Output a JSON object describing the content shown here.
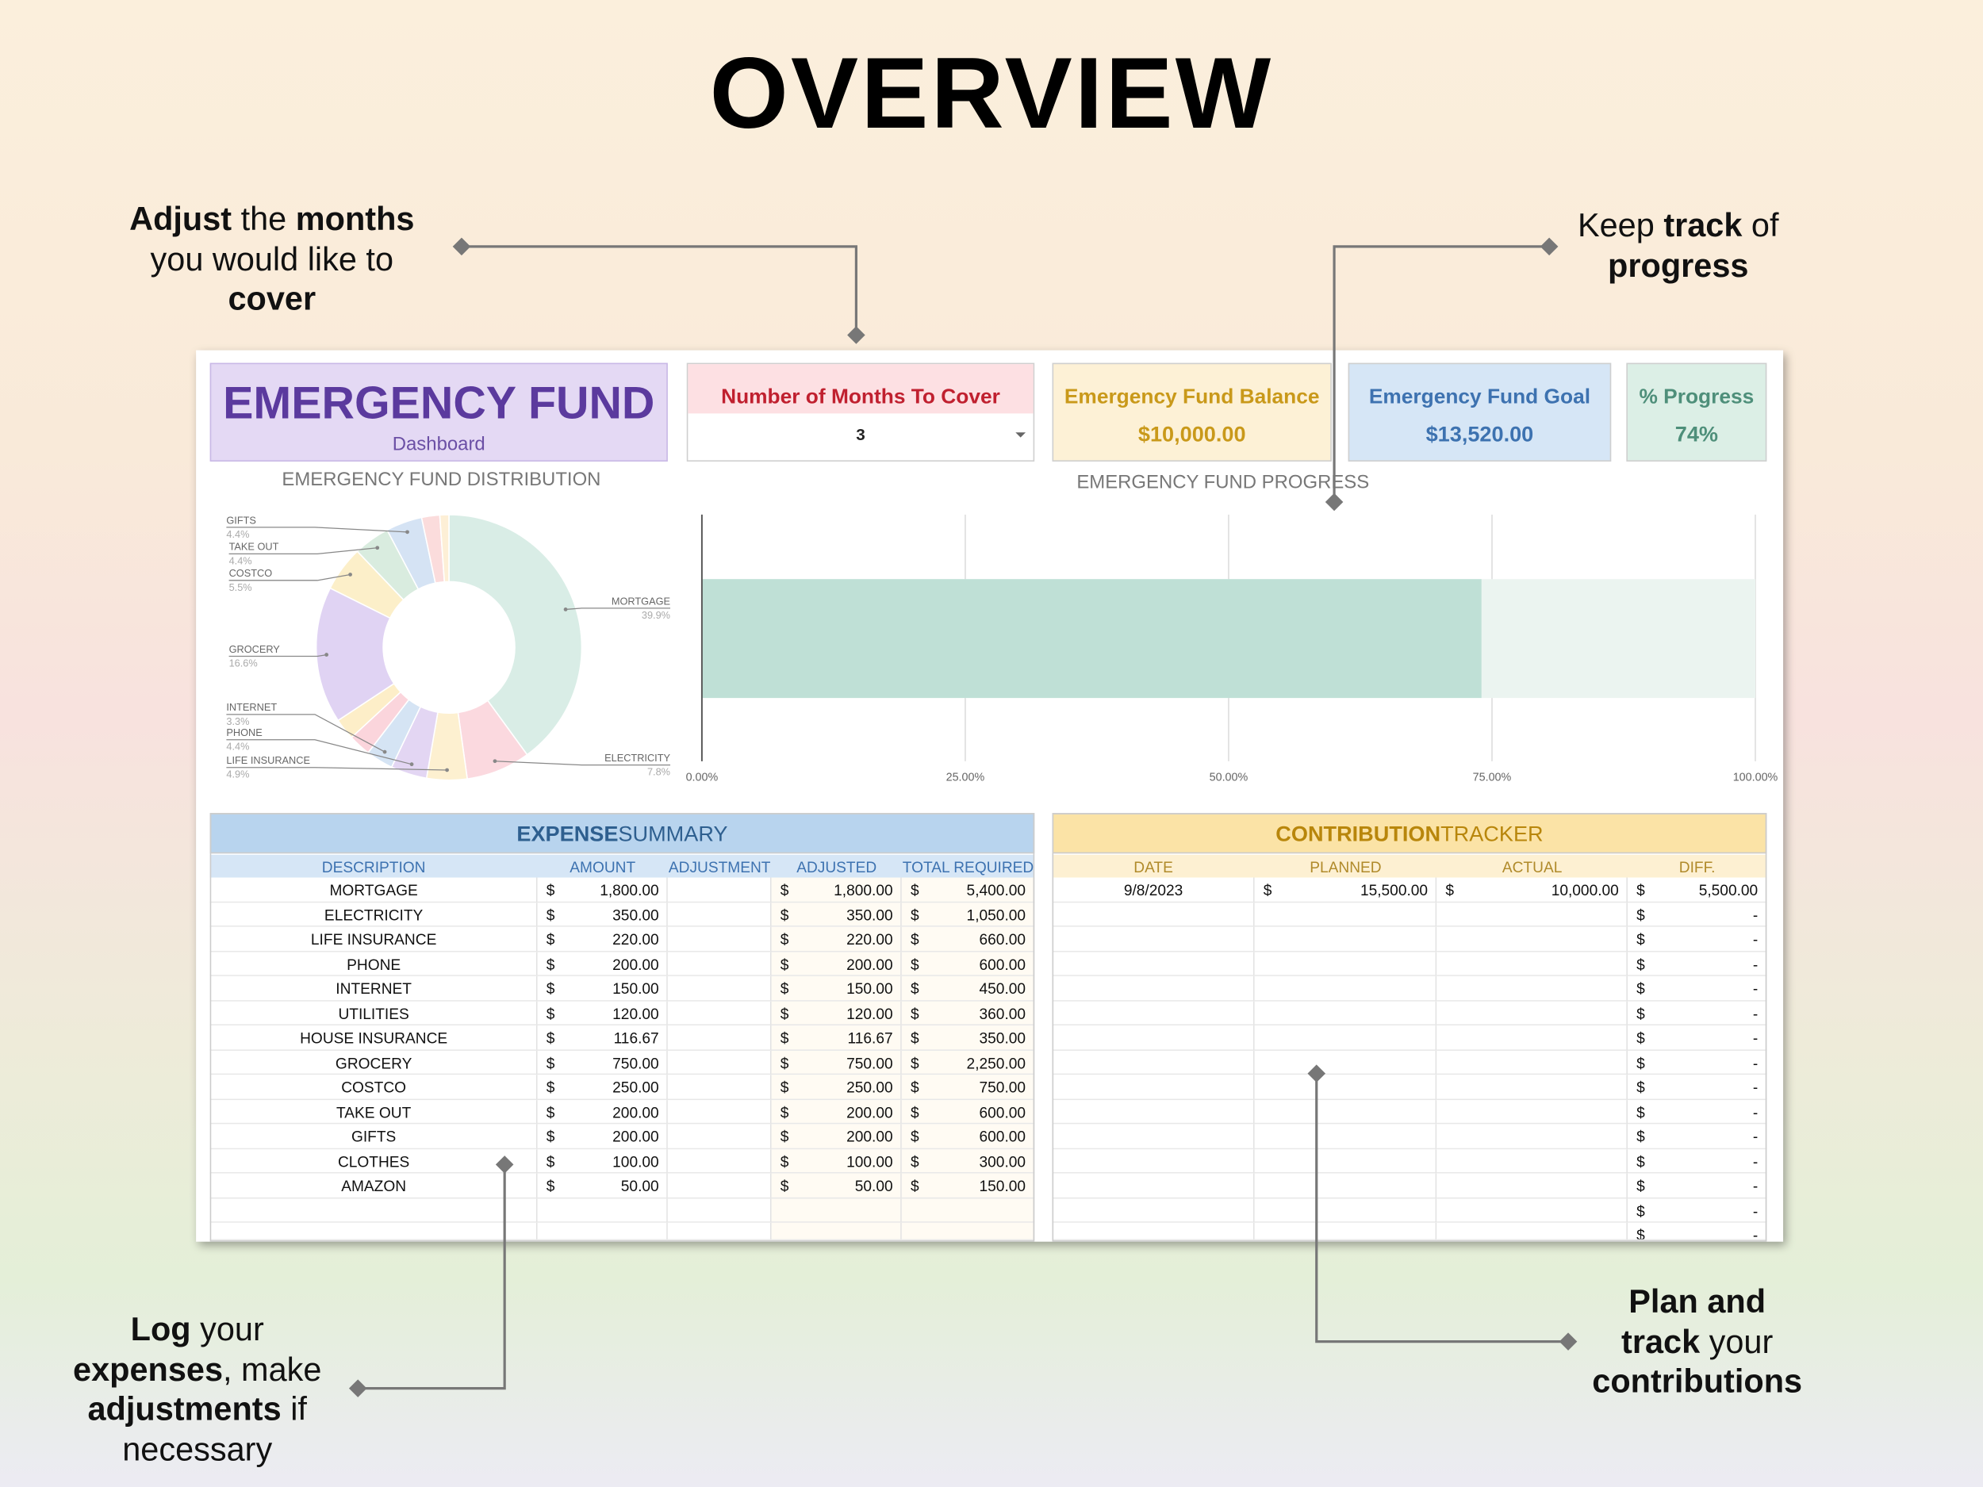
{
  "title": "OVERVIEW",
  "callouts": [
    {
      "lines": [
        [
          {
            "text": "Adjust",
            "bold": true
          },
          {
            "text": " the ",
            "bold": false
          },
          {
            "text": "months",
            "bold": true
          }
        ],
        [
          {
            "text": "you would like to",
            "bold": false
          }
        ],
        [
          {
            "text": "cover",
            "bold": true
          }
        ]
      ]
    },
    {
      "lines": [
        [
          {
            "text": "Keep ",
            "bold": false
          },
          {
            "text": "track",
            "bold": true
          },
          {
            "text": " of",
            "bold": false
          }
        ],
        [
          {
            "text": "progress",
            "bold": true
          }
        ]
      ]
    },
    {
      "lines": [
        [
          {
            "text": "Log",
            "bold": true
          },
          {
            "text": " your",
            "bold": false
          }
        ],
        [
          {
            "text": "expenses",
            "bold": true
          },
          {
            "text": ", make",
            "bold": false
          }
        ],
        [
          {
            "text": "adjustments",
            "bold": true
          },
          {
            "text": " if",
            "bold": false
          }
        ],
        [
          {
            "text": "necessary",
            "bold": false
          }
        ]
      ]
    },
    {
      "lines": [
        [
          {
            "text": "Plan and",
            "bold": true
          }
        ],
        [
          {
            "text": "track",
            "bold": true
          },
          {
            "text": " your",
            "bold": false
          }
        ],
        [
          {
            "text": "contributions",
            "bold": true
          }
        ]
      ]
    }
  ],
  "dashboard": {
    "title": "EMERGENCY FUND",
    "subtitle": "Dashboard",
    "cards": [
      {
        "label": "Number of Months To Cover",
        "value": 3
      },
      {
        "label": "Emergency Fund Balance",
        "value": "$10,000.00"
      },
      {
        "label": "Emergency Fund Goal",
        "value": "$13,520.00"
      },
      {
        "label": "% Progress",
        "value": "74%"
      }
    ]
  },
  "chart_data": [
    {
      "type": "donut",
      "title": "EMERGENCY FUND DISTRIBUTION",
      "categories": [
        "MORTGAGE",
        "ELECTRICITY",
        "LIFE INSURANCE",
        "PHONE",
        "INTERNET",
        null,
        null,
        "GROCERY",
        "COSTCO",
        "TAKE OUT",
        "GIFTS",
        null,
        null
      ],
      "values": [
        39.9,
        7.8,
        4.9,
        4.4,
        3.3,
        2.7,
        2.6,
        16.6,
        5.5,
        4.4,
        4.4,
        2.2,
        1.1
      ],
      "value_labels": [
        "39.9%",
        "7.8%",
        "4.9%",
        "4.4%",
        "3.3%",
        null,
        null,
        "16.6%",
        "5.5%",
        "4.4%",
        "4.4%",
        null,
        null
      ],
      "colors": [
        "#d9ede6",
        "#fbd9df",
        "#fdf0d0",
        "#e3d6f3",
        "#d5e4f4",
        "#fbd5dc",
        "#fdeec8",
        "#e0d3f3",
        "#fcefc9",
        "#d9ecdf",
        "#d5e3f4",
        "#fbdcdc",
        "#fdefd6"
      ]
    },
    {
      "type": "bar",
      "orientation": "horizontal",
      "title": "EMERGENCY FUND PROGRESS",
      "values": [
        74
      ],
      "color": "#bfe0d6",
      "track_color": "#ebf4f0",
      "xlim": [
        0,
        100
      ],
      "xticks": [
        {
          "value": 0,
          "label": "0.00%"
        },
        {
          "value": 25,
          "label": "25.00%"
        },
        {
          "value": 50,
          "label": "50.00%"
        },
        {
          "value": 75,
          "label": "75.00%"
        },
        {
          "value": 100,
          "label": "100.00%"
        }
      ],
      "grid": true
    }
  ],
  "expense_summary": {
    "title": [
      "EXPENSE",
      "SUMMARY"
    ],
    "columns": [
      "DESCRIPTION",
      "AMOUNT",
      "ADJUSTMENT",
      "ADJUSTED",
      "TOTAL REQUIRED"
    ],
    "currency": "$",
    "rows": [
      [
        "MORTGAGE",
        "1,800.00",
        null,
        "1,800.00",
        "5,400.00"
      ],
      [
        "ELECTRICITY",
        "350.00",
        null,
        "350.00",
        "1,050.00"
      ],
      [
        "LIFE INSURANCE",
        "220.00",
        null,
        "220.00",
        "660.00"
      ],
      [
        "PHONE",
        "200.00",
        null,
        "200.00",
        "600.00"
      ],
      [
        "INTERNET",
        "150.00",
        null,
        "150.00",
        "450.00"
      ],
      [
        "UTILITIES",
        "120.00",
        null,
        "120.00",
        "360.00"
      ],
      [
        "HOUSE INSURANCE",
        "116.67",
        null,
        "116.67",
        "350.00"
      ],
      [
        "GROCERY",
        "750.00",
        null,
        "750.00",
        "2,250.00"
      ],
      [
        "COSTCO",
        "250.00",
        null,
        "250.00",
        "750.00"
      ],
      [
        "TAKE OUT",
        "200.00",
        null,
        "200.00",
        "600.00"
      ],
      [
        "GIFTS",
        "200.00",
        null,
        "200.00",
        "600.00"
      ],
      [
        "CLOTHES",
        "100.00",
        null,
        "100.00",
        "300.00"
      ],
      [
        "AMAZON",
        "50.00",
        null,
        "50.00",
        "150.00"
      ],
      [
        null,
        null,
        null,
        null,
        null
      ],
      [
        null,
        null,
        null,
        null,
        null
      ]
    ]
  },
  "contribution_tracker": {
    "title": [
      "CONTRIBUTION",
      "TRACKER"
    ],
    "columns": [
      "DATE",
      "PLANNED",
      "ACTUAL",
      "DIFF."
    ],
    "currency": "$",
    "rows": [
      [
        "9/8/2023",
        "15,500.00",
        "10,000.00",
        "5,500.00"
      ],
      [
        null,
        null,
        null,
        "-"
      ],
      [
        null,
        null,
        null,
        "-"
      ],
      [
        null,
        null,
        null,
        "-"
      ],
      [
        null,
        null,
        null,
        "-"
      ],
      [
        null,
        null,
        null,
        "-"
      ],
      [
        null,
        null,
        null,
        "-"
      ],
      [
        null,
        null,
        null,
        "-"
      ],
      [
        null,
        null,
        null,
        "-"
      ],
      [
        null,
        null,
        null,
        "-"
      ],
      [
        null,
        null,
        null,
        "-"
      ],
      [
        null,
        null,
        null,
        "-"
      ],
      [
        null,
        null,
        null,
        "-"
      ],
      [
        null,
        null,
        null,
        "-"
      ],
      [
        null,
        null,
        null,
        "-"
      ]
    ]
  }
}
